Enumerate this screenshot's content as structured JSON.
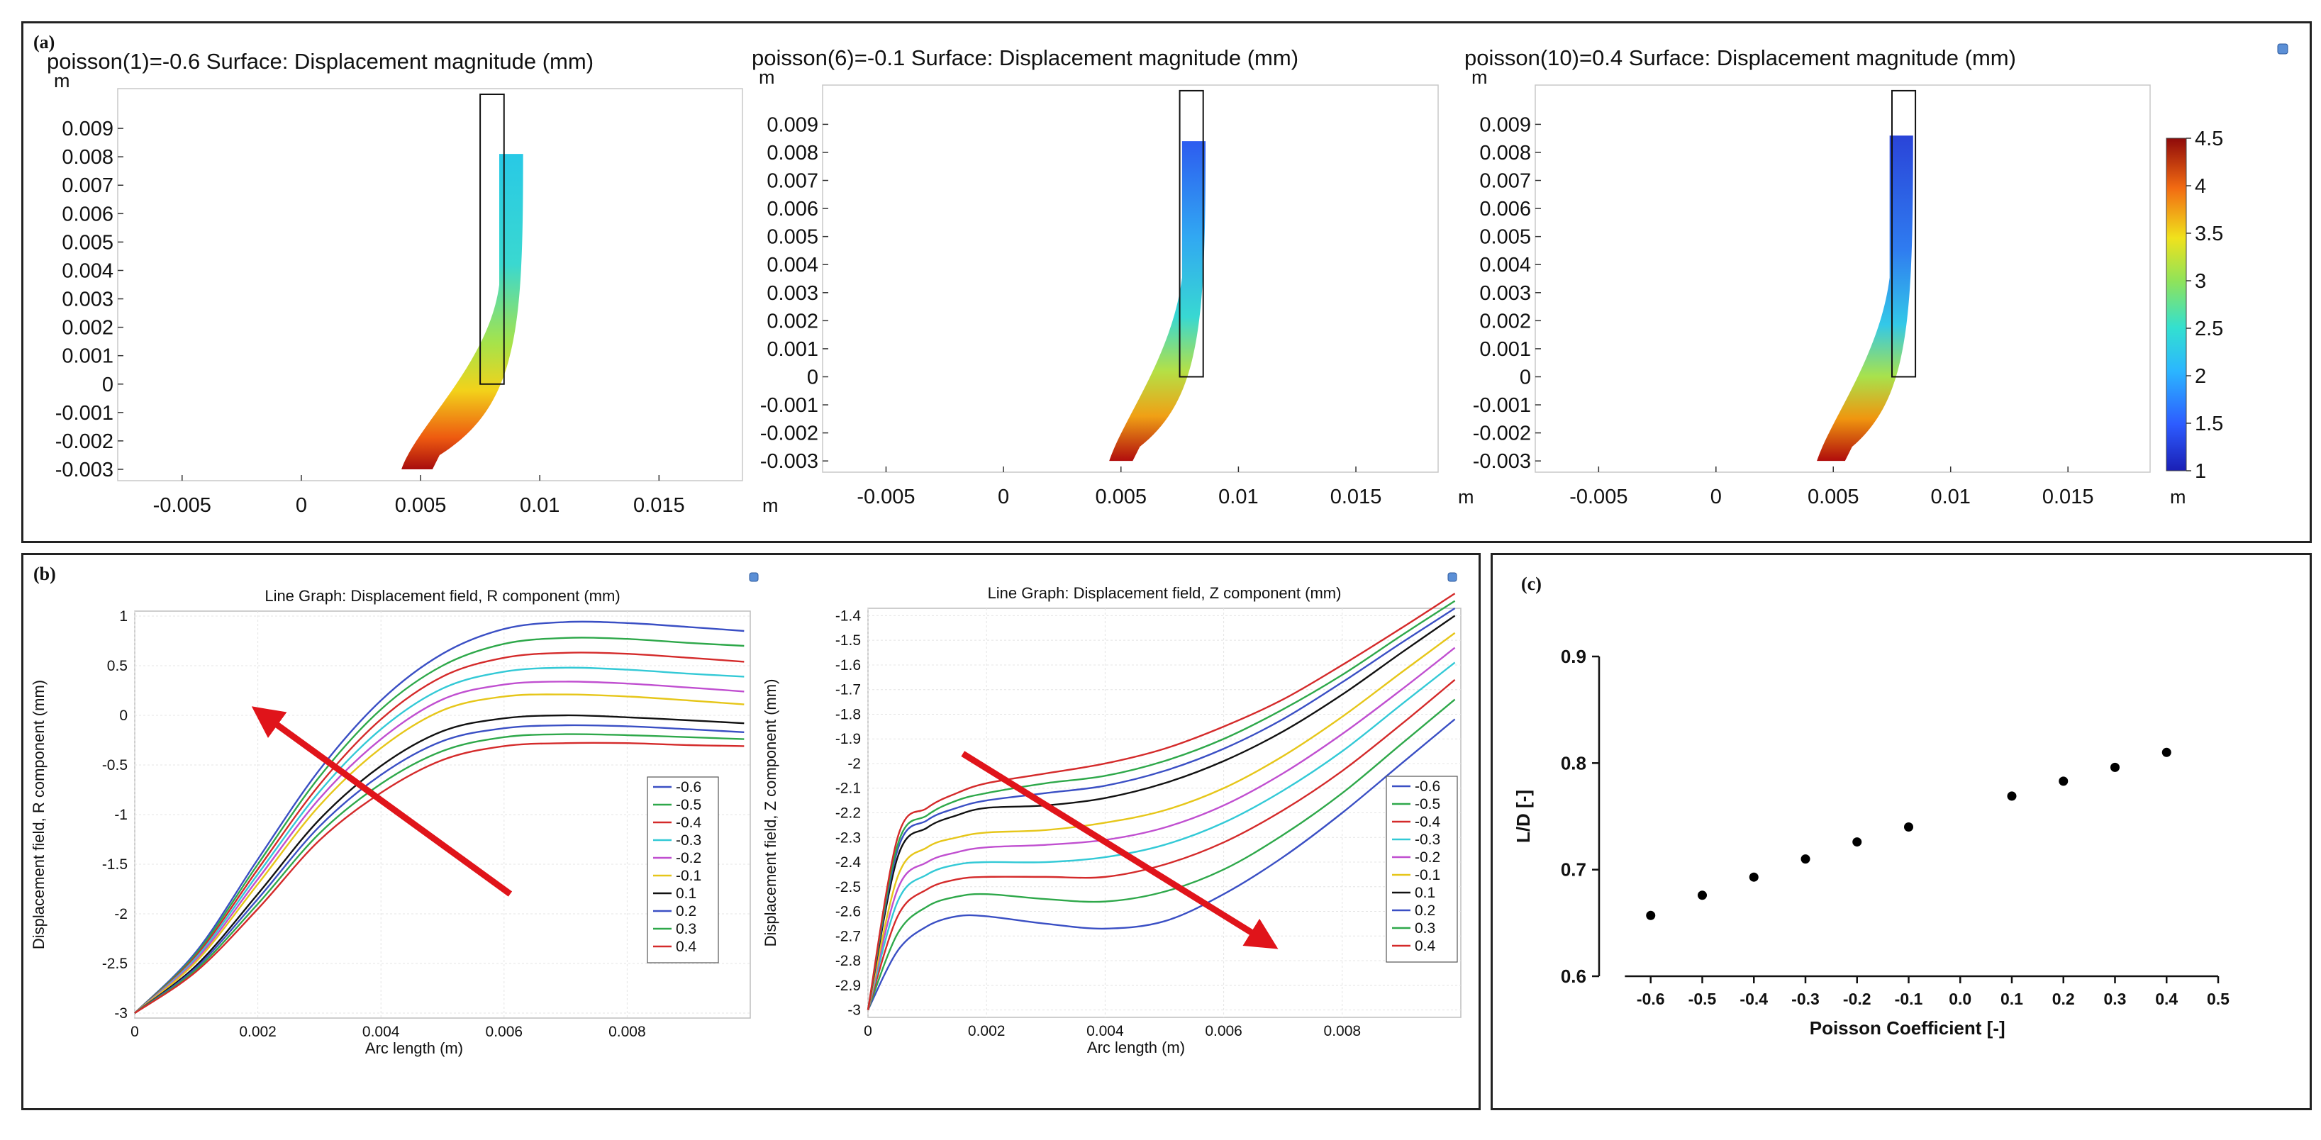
{
  "figure": {
    "panel_a_label": "(a)",
    "panel_b_label": "(b)",
    "panel_c_label": "(c)"
  },
  "colors": {
    "red_arrow": "#e0141a",
    "dot": "#000000"
  },
  "chart_data": [
    {
      "id": "a1",
      "type": "heatmap",
      "title": "poisson(1)=-0.6  Surface: Displacement magnitude (mm)",
      "xunit": "m",
      "yunit": "m",
      "xticks": [
        "-0.005",
        "0",
        "0.005",
        "0.01",
        "0.015"
      ],
      "xtick_values": [
        -0.005,
        0,
        0.005,
        0.01,
        0.015
      ],
      "yticks": [
        "0.009",
        "0.008",
        "0.007",
        "0.006",
        "0.005",
        "0.004",
        "0.003",
        "0.002",
        "0.001",
        "0",
        "-0.001",
        "-0.002",
        "-0.003"
      ],
      "ytick_values": [
        0.009,
        0.008,
        0.007,
        0.006,
        0.005,
        0.004,
        0.003,
        0.002,
        0.001,
        0,
        -0.001,
        -0.002,
        -0.003
      ],
      "xlim": [
        -0.0077,
        0.0185
      ],
      "ylim": [
        -0.0034,
        0.0104
      ],
      "rect": {
        "x0": 0.0075,
        "x1": 0.0085,
        "y0": 0.0,
        "y1": 0.0102
      },
      "shape_top": {
        "x0": 0.0083,
        "x1": 0.0093,
        "y": 0.0081
      },
      "shape_bottom": {
        "x0": 0.0042,
        "x1": 0.0055,
        "y": -0.003
      }
    },
    {
      "id": "a2",
      "type": "heatmap",
      "title": "poisson(6)=-0.1  Surface: Displacement magnitude (mm)",
      "xunit": "m",
      "yunit": "m",
      "xticks": [
        "-0.005",
        "0",
        "0.005",
        "0.01",
        "0.015"
      ],
      "xtick_values": [
        -0.005,
        0,
        0.005,
        0.01,
        0.015
      ],
      "yticks": [
        "0.009",
        "0.008",
        "0.007",
        "0.006",
        "0.005",
        "0.004",
        "0.003",
        "0.002",
        "0.001",
        "0",
        "-0.001",
        "-0.002",
        "-0.003"
      ],
      "ytick_values": [
        0.009,
        0.008,
        0.007,
        0.006,
        0.005,
        0.004,
        0.003,
        0.002,
        0.001,
        0,
        -0.001,
        -0.002,
        -0.003
      ],
      "xlim": [
        -0.0077,
        0.0185
      ],
      "ylim": [
        -0.0034,
        0.0104
      ],
      "rect": {
        "x0": 0.0075,
        "x1": 0.0085,
        "y0": 0.0,
        "y1": 0.0102
      },
      "shape_top": {
        "x0": 0.0076,
        "x1": 0.0086,
        "y": 0.0084
      },
      "shape_bottom": {
        "x0": 0.0045,
        "x1": 0.0055,
        "y": -0.003
      }
    },
    {
      "id": "a3",
      "type": "heatmap",
      "title": "poisson(10)=0.4  Surface: Displacement magnitude (mm)",
      "xunit": "m",
      "yunit": "m",
      "xticks": [
        "-0.005",
        "0",
        "0.005",
        "0.01",
        "0.015"
      ],
      "xtick_values": [
        -0.005,
        0,
        0.005,
        0.01,
        0.015
      ],
      "yticks": [
        "0.009",
        "0.008",
        "0.007",
        "0.006",
        "0.005",
        "0.004",
        "0.003",
        "0.002",
        "0.001",
        "0",
        "-0.001",
        "-0.002",
        "-0.003"
      ],
      "ytick_values": [
        0.009,
        0.008,
        0.007,
        0.006,
        0.005,
        0.004,
        0.003,
        0.002,
        0.001,
        0,
        -0.001,
        -0.002,
        -0.003
      ],
      "xlim": [
        -0.0077,
        0.0185
      ],
      "ylim": [
        -0.0034,
        0.0104
      ],
      "rect": {
        "x0": 0.0075,
        "x1": 0.0085,
        "y0": 0.0,
        "y1": 0.0102
      },
      "shape_top": {
        "x0": 0.0074,
        "x1": 0.0084,
        "y": 0.0086
      },
      "shape_bottom": {
        "x0": 0.0043,
        "x1": 0.0055,
        "y": -0.003
      }
    },
    {
      "id": "colorbar",
      "type": "colorbar",
      "ticks": [
        "4.5",
        "4",
        "3.5",
        "3",
        "2.5",
        "2",
        "1.5",
        "1"
      ],
      "tick_values": [
        4.5,
        4,
        3.5,
        3,
        2.5,
        2,
        1.5,
        1
      ],
      "range": [
        1,
        4.5
      ]
    },
    {
      "id": "b1",
      "type": "line",
      "title": "Line Graph: Displacement field, R component (mm)",
      "xlabel": "Arc length (m)",
      "ylabel": "Displacement field, R component (mm)",
      "xlim": [
        0,
        0.01
      ],
      "ylim": [
        -3.05,
        1.05
      ],
      "xticks": [
        "0",
        "0.002",
        "0.004",
        "0.006",
        "0.008"
      ],
      "xtick_values": [
        0,
        0.002,
        0.004,
        0.006,
        0.008
      ],
      "yticks": [
        "1",
        "0.5",
        "0",
        "-0.5",
        "-1",
        "-1.5",
        "-2",
        "-2.5",
        "-3"
      ],
      "ytick_values": [
        1,
        0.5,
        0,
        -0.5,
        -1,
        -1.5,
        -2,
        -2.5,
        -3
      ],
      "x": [
        0,
        0.001,
        0.002,
        0.003,
        0.004,
        0.005,
        0.006,
        0.007,
        0.008,
        0.009,
        0.0099
      ],
      "series": [
        {
          "name": "-0.6",
          "color": "#3a4fc4",
          "values": [
            -3.0,
            -2.38,
            -1.45,
            -0.55,
            0.15,
            0.62,
            0.87,
            0.94,
            0.93,
            0.89,
            0.85
          ]
        },
        {
          "name": "-0.5",
          "color": "#2ea84a",
          "values": [
            -3.0,
            -2.4,
            -1.5,
            -0.62,
            0.06,
            0.5,
            0.72,
            0.78,
            0.77,
            0.73,
            0.7
          ]
        },
        {
          "name": "-0.4",
          "color": "#d42a2a",
          "values": [
            -3.0,
            -2.42,
            -1.55,
            -0.7,
            -0.04,
            0.39,
            0.58,
            0.63,
            0.62,
            0.58,
            0.54
          ]
        },
        {
          "name": "-0.3",
          "color": "#33c9d6",
          "values": [
            -3.0,
            -2.44,
            -1.6,
            -0.77,
            -0.14,
            0.27,
            0.44,
            0.48,
            0.46,
            0.42,
            0.39
          ]
        },
        {
          "name": "-0.2",
          "color": "#c04fd0",
          "values": [
            -3.0,
            -2.46,
            -1.65,
            -0.84,
            -0.24,
            0.16,
            0.31,
            0.34,
            0.32,
            0.28,
            0.24
          ]
        },
        {
          "name": "-0.1",
          "color": "#e6c619",
          "values": [
            -3.0,
            -2.48,
            -1.7,
            -0.91,
            -0.33,
            0.05,
            0.19,
            0.21,
            0.19,
            0.15,
            0.11
          ]
        },
        {
          "name": "0.1",
          "color": "#111111",
          "values": [
            -3.0,
            -2.52,
            -1.8,
            -1.05,
            -0.51,
            -0.16,
            -0.03,
            0.0,
            -0.02,
            -0.05,
            -0.08
          ]
        },
        {
          "name": "0.2",
          "color": "#3a4fc4",
          "values": [
            -3.0,
            -2.54,
            -1.85,
            -1.12,
            -0.6,
            -0.26,
            -0.13,
            -0.1,
            -0.11,
            -0.14,
            -0.17
          ]
        },
        {
          "name": "0.3",
          "color": "#2ea84a",
          "values": [
            -3.0,
            -2.56,
            -1.9,
            -1.19,
            -0.69,
            -0.36,
            -0.22,
            -0.19,
            -0.2,
            -0.22,
            -0.24
          ]
        },
        {
          "name": "0.4",
          "color": "#d42a2a",
          "values": [
            -3.0,
            -2.58,
            -1.95,
            -1.26,
            -0.78,
            -0.45,
            -0.31,
            -0.28,
            -0.28,
            -0.3,
            -0.31
          ]
        }
      ],
      "legend": "bottom-right",
      "arrow": {
        "from": [
          0.0061,
          -1.8
        ],
        "to": [
          0.0021,
          0.0
        ]
      }
    },
    {
      "id": "b2",
      "type": "line",
      "title": "Line Graph: Displacement field, Z component (mm)",
      "xlabel": "Arc length (m)",
      "ylabel": "Displacement field, Z component (mm)",
      "xlim": [
        0,
        0.01
      ],
      "ylim": [
        -3.03,
        -1.37
      ],
      "xticks": [
        "0",
        "0.002",
        "0.004",
        "0.006",
        "0.008"
      ],
      "xtick_values": [
        0,
        0.002,
        0.004,
        0.006,
        0.008
      ],
      "yticks": [
        "-1.4",
        "-1.5",
        "-1.6",
        "-1.7",
        "-1.8",
        "-1.9",
        "-2",
        "-2.1",
        "-2.2",
        "-2.3",
        "-2.4",
        "-2.5",
        "-2.6",
        "-2.7",
        "-2.8",
        "-2.9",
        "-3"
      ],
      "ytick_values": [
        -1.4,
        -1.5,
        -1.6,
        -1.7,
        -1.8,
        -1.9,
        -2,
        -2.1,
        -2.2,
        -2.3,
        -2.4,
        -2.5,
        -2.6,
        -2.7,
        -2.8,
        -2.9,
        -3
      ],
      "x": [
        0,
        0.0005,
        0.001,
        0.0015,
        0.002,
        0.003,
        0.004,
        0.005,
        0.006,
        0.007,
        0.008,
        0.009,
        0.0099
      ],
      "series": [
        {
          "name": "-0.6",
          "color": "#3a4fc4",
          "values": [
            -3.0,
            -2.76,
            -2.66,
            -2.62,
            -2.62,
            -2.65,
            -2.67,
            -2.64,
            -2.53,
            -2.38,
            -2.2,
            -2.0,
            -1.82
          ]
        },
        {
          "name": "-0.5",
          "color": "#2ea84a",
          "values": [
            -3.0,
            -2.69,
            -2.58,
            -2.54,
            -2.53,
            -2.55,
            -2.56,
            -2.52,
            -2.43,
            -2.29,
            -2.12,
            -1.92,
            -1.74
          ]
        },
        {
          "name": "-0.4",
          "color": "#d42a2a",
          "values": [
            -3.0,
            -2.62,
            -2.51,
            -2.47,
            -2.46,
            -2.46,
            -2.46,
            -2.41,
            -2.32,
            -2.19,
            -2.03,
            -1.84,
            -1.66
          ]
        },
        {
          "name": "-0.3",
          "color": "#33c9d6",
          "values": [
            -3.0,
            -2.56,
            -2.45,
            -2.41,
            -2.4,
            -2.4,
            -2.38,
            -2.33,
            -2.24,
            -2.11,
            -1.95,
            -1.76,
            -1.59
          ]
        },
        {
          "name": "-0.2",
          "color": "#c04fd0",
          "values": [
            -3.0,
            -2.51,
            -2.4,
            -2.36,
            -2.34,
            -2.33,
            -2.31,
            -2.26,
            -2.17,
            -2.04,
            -1.88,
            -1.7,
            -1.53
          ]
        },
        {
          "name": "-0.1",
          "color": "#e6c619",
          "values": [
            -3.0,
            -2.46,
            -2.34,
            -2.3,
            -2.28,
            -2.27,
            -2.24,
            -2.19,
            -2.1,
            -1.97,
            -1.81,
            -1.63,
            -1.47
          ]
        },
        {
          "name": "0.1",
          "color": "#111111",
          "values": [
            -3.0,
            -2.38,
            -2.26,
            -2.21,
            -2.18,
            -2.17,
            -2.14,
            -2.08,
            -1.99,
            -1.87,
            -1.72,
            -1.55,
            -1.4
          ]
        },
        {
          "name": "0.2",
          "color": "#3a4fc4",
          "values": [
            -3.0,
            -2.35,
            -2.23,
            -2.18,
            -2.15,
            -2.12,
            -2.09,
            -2.03,
            -1.94,
            -1.82,
            -1.67,
            -1.51,
            -1.37
          ]
        },
        {
          "name": "0.3",
          "color": "#2ea84a",
          "values": [
            -3.0,
            -2.33,
            -2.21,
            -2.15,
            -2.12,
            -2.08,
            -2.05,
            -1.99,
            -1.9,
            -1.78,
            -1.64,
            -1.48,
            -1.34
          ]
        },
        {
          "name": "0.4",
          "color": "#d42a2a",
          "values": [
            -3.0,
            -2.3,
            -2.18,
            -2.12,
            -2.08,
            -2.04,
            -2.0,
            -1.94,
            -1.85,
            -1.74,
            -1.6,
            -1.45,
            -1.31
          ]
        }
      ],
      "legend": "bottom-right",
      "arrow": {
        "from": [
          0.0016,
          -1.96
        ],
        "to": [
          0.0067,
          -2.72
        ]
      }
    },
    {
      "id": "c",
      "type": "scatter",
      "title": "",
      "xlabel": "Poisson Coefficient [-]",
      "ylabel": "L/D [-]",
      "xlim": [
        -0.7,
        0.5
      ],
      "ylim": [
        0.6,
        0.9
      ],
      "xticks": [
        "-0.6",
        "-0.5",
        "-0.4",
        "-0.3",
        "-0.2",
        "-0.1",
        "0.0",
        "0.1",
        "0.2",
        "0.3",
        "0.4",
        "0.5"
      ],
      "xtick_values": [
        -0.6,
        -0.5,
        -0.4,
        -0.3,
        -0.2,
        -0.1,
        0.0,
        0.1,
        0.2,
        0.3,
        0.4,
        0.5
      ],
      "yticks": [
        "0.9",
        "0.8",
        "0.7",
        "0.6"
      ],
      "ytick_values": [
        0.9,
        0.8,
        0.7,
        0.6
      ],
      "x": [
        -0.6,
        -0.5,
        -0.4,
        -0.3,
        -0.2,
        -0.1,
        0.1,
        0.2,
        0.3,
        0.4
      ],
      "y": [
        0.657,
        0.676,
        0.693,
        0.71,
        0.726,
        0.74,
        0.769,
        0.783,
        0.796,
        0.81
      ]
    }
  ]
}
